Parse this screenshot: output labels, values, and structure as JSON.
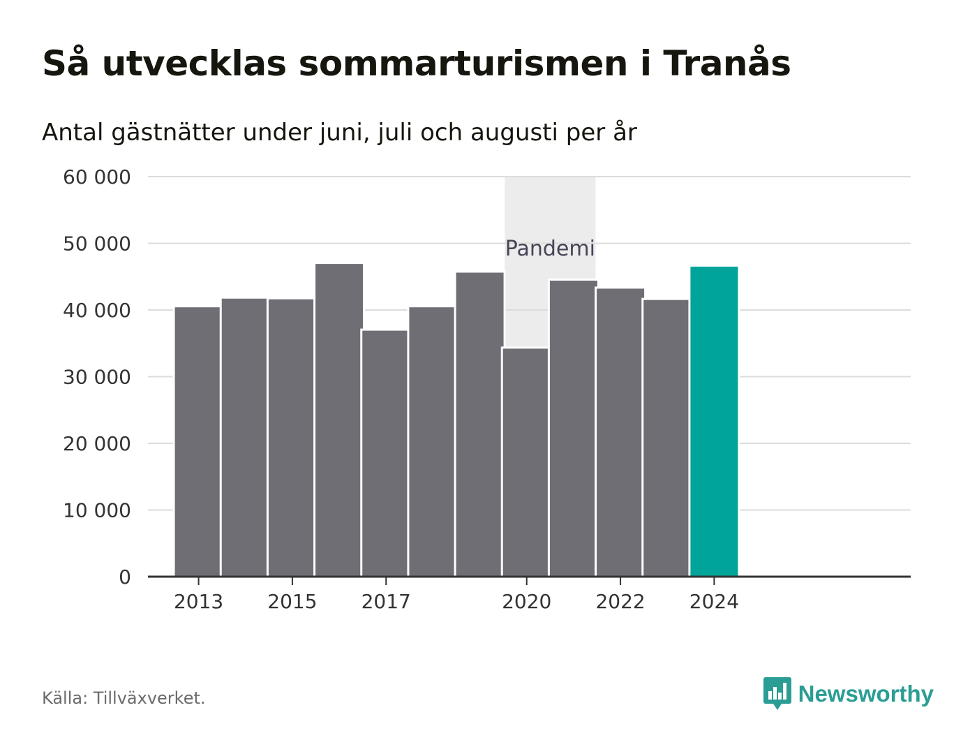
{
  "title": "Så utvecklas sommarturismen i Tranås",
  "subtitle": "Antal gästnätter under juni, juli och augusti per år",
  "source": "Källa: Tillväxverket.",
  "brand": "Newsworthy",
  "colors": {
    "bar": "#6f6e75",
    "highlight": "#00a49a",
    "band": "#ececec",
    "grid": "#dcdcdc",
    "axis": "#333333",
    "brand": "#2a9d94"
  },
  "chart_data": {
    "type": "bar",
    "categories": [
      "2013",
      "2014",
      "2015",
      "2016",
      "2017",
      "2018",
      "2019",
      "2020",
      "2021",
      "2022",
      "2023",
      "2024"
    ],
    "values": [
      40400,
      41700,
      41600,
      46900,
      36900,
      40400,
      45600,
      34200,
      44400,
      43200,
      41500,
      46500
    ],
    "highlight_category": "2024",
    "ylim": [
      0,
      60000
    ],
    "yticks": [
      0,
      10000,
      20000,
      30000,
      40000,
      50000,
      60000
    ],
    "ytick_labels": [
      "0",
      "10 000",
      "20 000",
      "30 000",
      "40 000",
      "50 000",
      "60 000"
    ],
    "xtick_labels": [
      "2013",
      "2015",
      "2017",
      "2020",
      "2022",
      "2024"
    ],
    "band": {
      "from": "2020",
      "to": "2021",
      "label": "Pandemi"
    },
    "grid": true,
    "xlabel": "",
    "ylabel": ""
  }
}
